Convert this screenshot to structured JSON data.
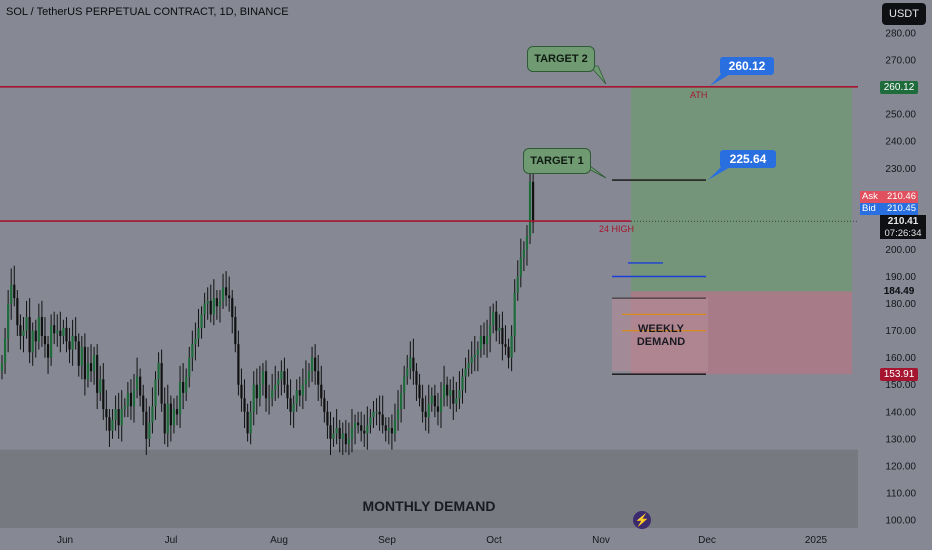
{
  "header": {
    "title": "SOL / TetherUS PERPETUAL CONTRACT, 1D, BINANCE",
    "currency_button": "USDT"
  },
  "annotations": {
    "target1": "TARGET 1",
    "target2": "TARGET 2",
    "target1_price": "225.64",
    "target2_price": "260.12",
    "ath_label": "ATH",
    "high24_label": "24 HIGH",
    "weekly_demand": "WEEKLY\nDEMAND",
    "monthly_demand": "MONTHLY DEMAND"
  },
  "price_tags": {
    "target_right": "260.12",
    "ask_label": "Ask",
    "ask_value": "210.46",
    "bid_label": "Bid",
    "bid_value": "210.45",
    "last_price": "210.41",
    "countdown": "07:26:34",
    "level_184": "184.49",
    "level_153": "153.91"
  },
  "colors": {
    "background": "#868993",
    "bull": "#1e6b3c",
    "bear": "#111111",
    "resistance": "#a5152f",
    "profit_zone": "#6f9a72",
    "loss_zone": "#c2707d",
    "monthly_zone": "#76797f",
    "accent_blue": "#2a6fe0"
  },
  "chart_data": {
    "type": "candlestick",
    "title": "SOL / TetherUS PERPETUAL CONTRACT, 1D, BINANCE",
    "ylim": [
      95,
      290
    ],
    "y_ticks": [
      100,
      110,
      120,
      130,
      140,
      150,
      160,
      170,
      180,
      190,
      200,
      210,
      220,
      230,
      240,
      250,
      260,
      270,
      280
    ],
    "x_ticks": [
      "Jun",
      "Jul",
      "Aug",
      "Sep",
      "Oct",
      "Nov",
      "Dec",
      "2025"
    ],
    "horizontal_lines": [
      {
        "name": "ATH",
        "value": 260.12
      },
      {
        "name": "24 HIGH",
        "value": 210.5
      }
    ],
    "levels": {
      "target2": 260.12,
      "target1": 225.64,
      "entry": 184.49,
      "stop": 153.91,
      "last": 210.41
    },
    "zones": [
      {
        "name": "MONTHLY DEMAND",
        "from": 100,
        "to": 126
      },
      {
        "name": "WEEKLY DEMAND",
        "from": 154,
        "to": 184
      }
    ],
    "close_series": [
      158,
      167,
      180,
      187,
      182,
      172,
      168,
      170,
      175,
      162,
      170,
      166,
      175,
      168,
      165,
      160,
      172,
      169,
      170,
      168,
      171,
      166,
      163,
      168,
      166,
      157,
      164,
      152,
      158,
      155,
      161,
      147,
      152,
      141,
      138,
      133,
      137,
      141,
      135,
      141,
      142,
      147,
      142,
      148,
      153,
      146,
      140,
      130,
      136,
      142,
      152,
      158,
      143,
      132,
      143,
      135,
      141,
      139,
      151,
      147,
      153,
      160,
      165,
      167,
      171,
      176,
      180,
      181,
      176,
      182,
      179,
      181,
      186,
      183,
      182,
      175,
      165,
      150,
      145,
      140,
      132,
      140,
      150,
      145,
      150,
      155,
      145,
      145,
      148,
      150,
      152,
      155,
      150,
      145,
      140,
      143,
      148,
      146,
      150,
      152,
      155,
      160,
      155,
      150,
      145,
      140,
      135,
      130,
      132,
      134,
      130,
      132,
      128,
      130,
      134,
      136,
      135,
      133,
      132,
      135,
      138,
      140,
      140,
      139,
      135,
      133,
      134,
      132,
      137,
      141,
      147,
      153,
      156,
      160,
      155,
      150,
      145,
      140,
      138,
      143,
      146,
      142,
      140,
      145,
      150,
      146,
      148,
      143,
      145,
      148,
      153,
      156,
      158,
      160,
      161,
      163,
      168,
      165,
      168,
      172,
      177,
      170,
      171,
      165,
      164,
      160,
      168,
      184,
      190,
      197,
      200,
      205,
      225,
      210
    ]
  }
}
